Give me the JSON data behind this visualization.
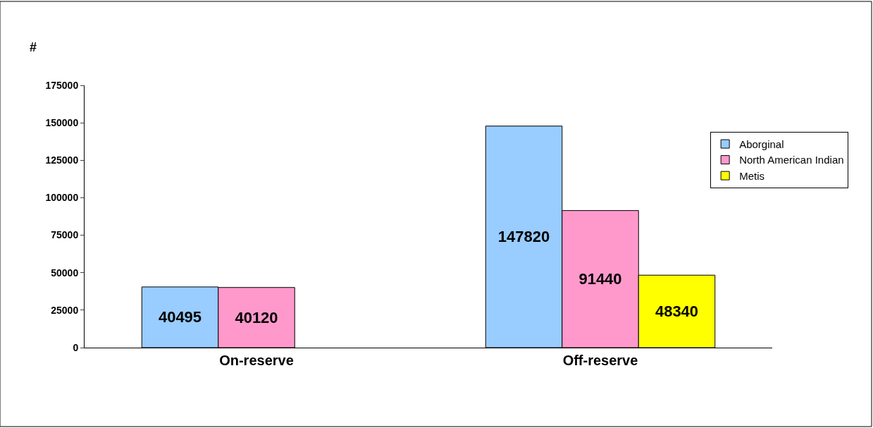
{
  "chart_data": {
    "type": "bar",
    "ylabel": "#",
    "categories": [
      "On-reserve",
      "Off-reserve"
    ],
    "series": [
      {
        "name": "Aborginal",
        "color": "#99ccff",
        "values": [
          40495,
          147820
        ]
      },
      {
        "name": "North American Indian",
        "color": "#ff99cc",
        "values": [
          40120,
          91440
        ]
      },
      {
        "name": "Metis",
        "color": "#ffff00",
        "values": [
          null,
          48340
        ]
      }
    ],
    "ylim": [
      0,
      175000
    ],
    "yticks": [
      0,
      25000,
      50000,
      75000,
      100000,
      125000,
      150000,
      175000
    ],
    "data_labels": true,
    "legend": "right"
  }
}
